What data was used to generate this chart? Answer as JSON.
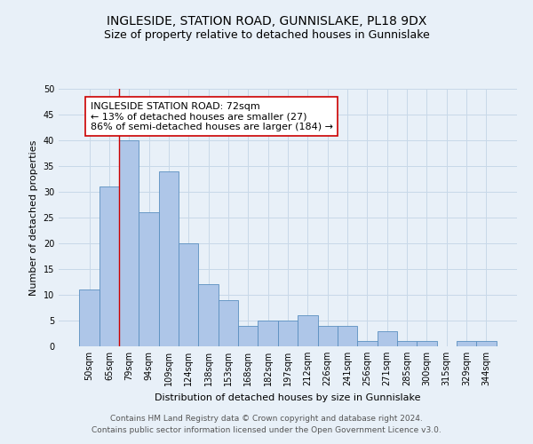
{
  "title": "INGLESIDE, STATION ROAD, GUNNISLAKE, PL18 9DX",
  "subtitle": "Size of property relative to detached houses in Gunnislake",
  "xlabel": "Distribution of detached houses by size in Gunnislake",
  "ylabel": "Number of detached properties",
  "categories": [
    "50sqm",
    "65sqm",
    "79sqm",
    "94sqm",
    "109sqm",
    "124sqm",
    "138sqm",
    "153sqm",
    "168sqm",
    "182sqm",
    "197sqm",
    "212sqm",
    "226sqm",
    "241sqm",
    "256sqm",
    "271sqm",
    "285sqm",
    "300sqm",
    "315sqm",
    "329sqm",
    "344sqm"
  ],
  "values": [
    11,
    31,
    40,
    26,
    34,
    20,
    12,
    9,
    4,
    5,
    5,
    6,
    4,
    4,
    1,
    3,
    1,
    1,
    0,
    1,
    1
  ],
  "bar_color": "#aec6e8",
  "bar_edge_color": "#5a8fc0",
  "vline_x_index": 1.5,
  "vline_color": "#cc0000",
  "annotation_text": "INGLESIDE STATION ROAD: 72sqm\n← 13% of detached houses are smaller (27)\n86% of semi-detached houses are larger (184) →",
  "annotation_box_color": "#ffffff",
  "annotation_box_edge_color": "#cc0000",
  "ylim": [
    0,
    50
  ],
  "yticks": [
    0,
    5,
    10,
    15,
    20,
    25,
    30,
    35,
    40,
    45,
    50
  ],
  "grid_color": "#c8d8e8",
  "background_color": "#e8f0f8",
  "footer_line1": "Contains HM Land Registry data © Crown copyright and database right 2024.",
  "footer_line2": "Contains public sector information licensed under the Open Government Licence v3.0.",
  "title_fontsize": 10,
  "subtitle_fontsize": 9,
  "axis_label_fontsize": 8,
  "tick_fontsize": 7,
  "annotation_fontsize": 8,
  "footer_fontsize": 6.5
}
